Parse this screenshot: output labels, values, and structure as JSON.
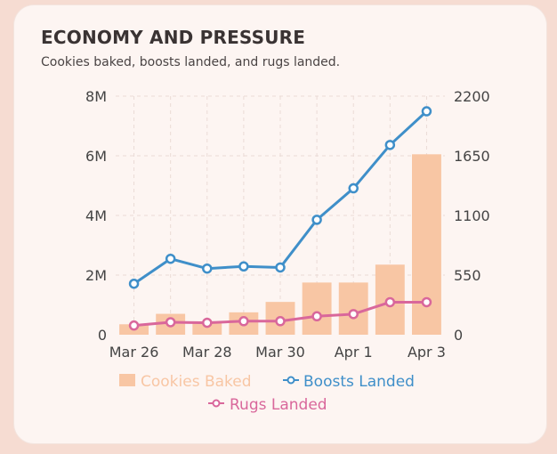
{
  "chart_data": {
    "type": "bar+line",
    "title": "ECONOMY AND PRESSURE",
    "subtitle": "Cookies baked, boosts landed, and rugs landed.",
    "categories": [
      "Mar 26",
      "Mar 27",
      "Mar 28",
      "Mar 29",
      "Mar 30",
      "Mar 31",
      "Apr 1",
      "Apr 2",
      "Apr 3"
    ],
    "x_tick_labels": [
      "Mar 26",
      "Mar 28",
      "Mar 30",
      "Apr 1",
      "Apr 3"
    ],
    "left_axis": {
      "ylim": [
        0,
        8000000
      ],
      "ticks": [
        "0",
        "2M",
        "4M",
        "6M",
        "8M"
      ]
    },
    "right_axis": {
      "ylim": [
        0,
        2200
      ],
      "ticks": [
        "0",
        "550",
        "1100",
        "1650",
        "2200"
      ]
    },
    "series": [
      {
        "name": "Cookies Baked",
        "kind": "bar",
        "axis": "left",
        "color": "#f8c6a4",
        "values": [
          350000,
          700000,
          450000,
          750000,
          1100000,
          1750000,
          1750000,
          2350000,
          6050000
        ]
      },
      {
        "name": "Boosts Landed",
        "kind": "line",
        "axis": "right",
        "color": "#3f8fc9",
        "values": [
          470,
          700,
          610,
          630,
          620,
          1060,
          1350,
          1750,
          2060
        ]
      },
      {
        "name": "Rugs Landed",
        "kind": "line",
        "axis": "right",
        "color": "#d9679b",
        "values": [
          85,
          115,
          110,
          125,
          125,
          170,
          190,
          300,
          300
        ]
      }
    ],
    "legend": [
      "Cookies Baked",
      "Boosts Landed",
      "Rugs Landed"
    ],
    "legend_position": "bottom"
  }
}
